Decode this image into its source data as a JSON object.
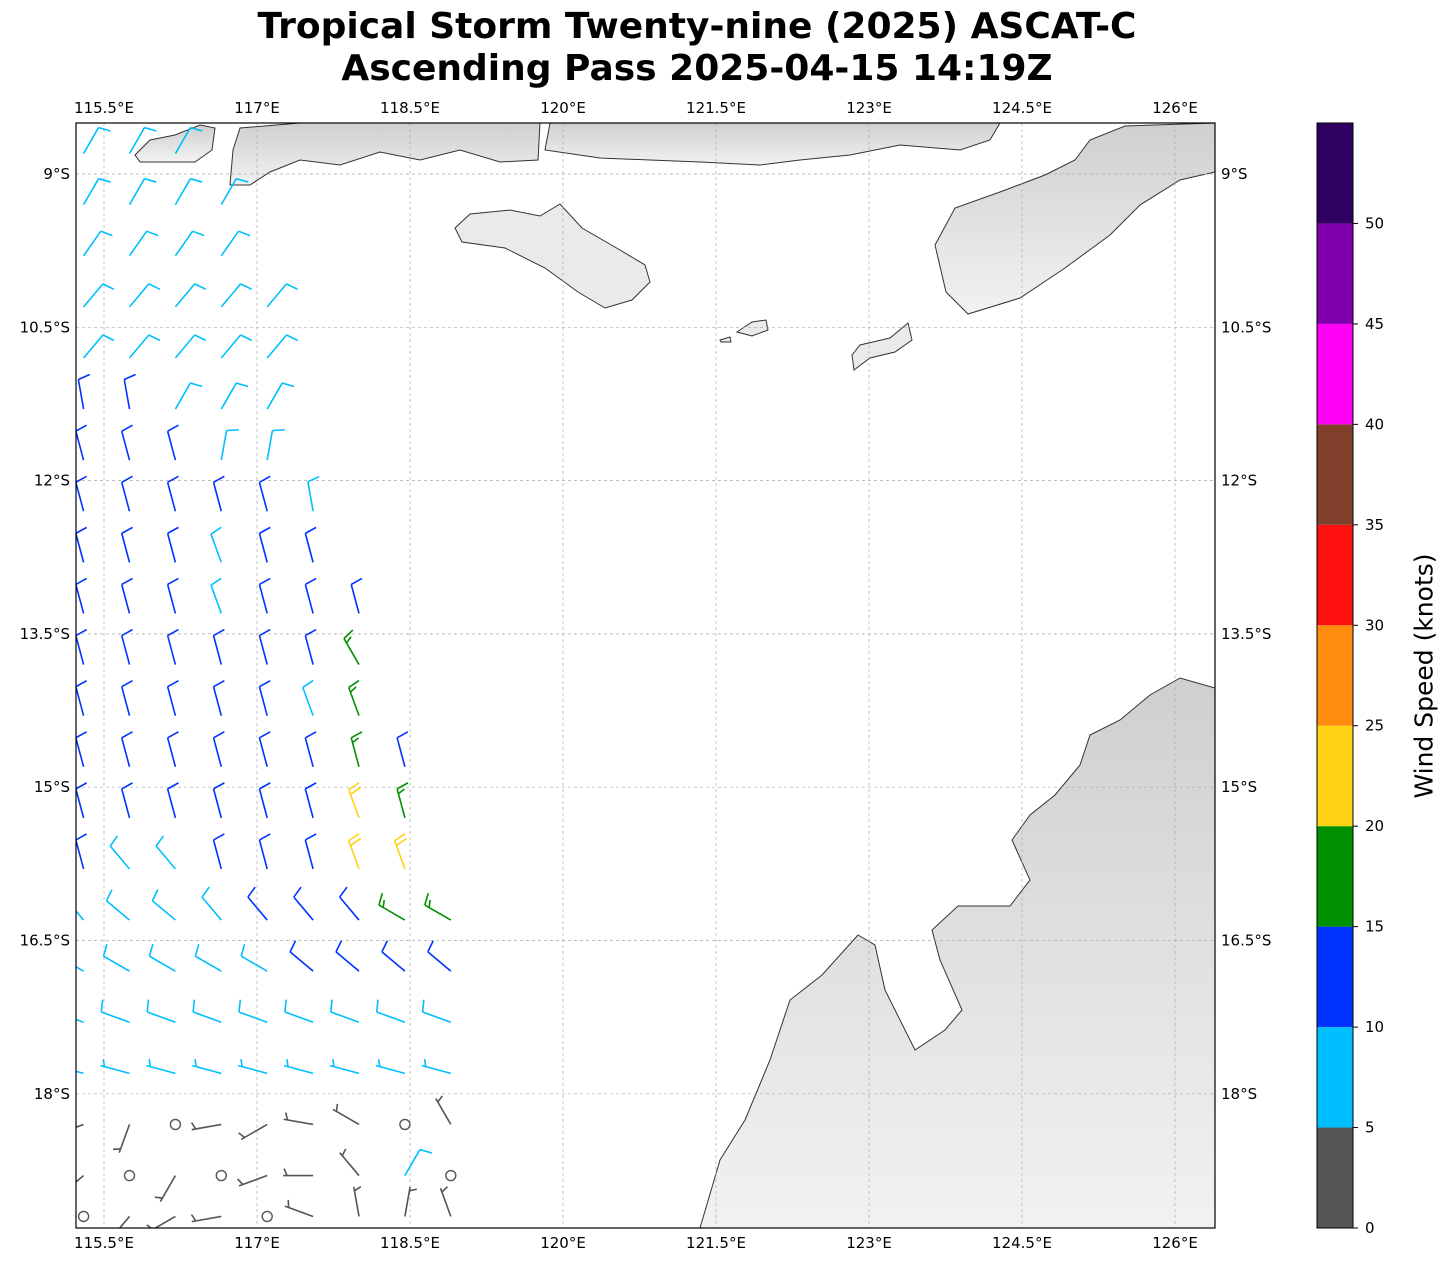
{
  "title": {
    "line1": "Tropical Storm Twenty-nine (2025) ASCAT-C",
    "line2": "Ascending Pass 2025-04-15 14:19Z"
  },
  "map": {
    "lon_ticks": [
      "115.5°E",
      "117°E",
      "118.5°E",
      "120°E",
      "121.5°E",
      "123°E",
      "124.5°E",
      "126°E"
    ],
    "lon_values": [
      115.5,
      117,
      118.5,
      120,
      121.5,
      123,
      124.5,
      126
    ],
    "lat_ticks": [
      "9°S",
      "10.5°S",
      "12°S",
      "13.5°S",
      "15°S",
      "16.5°S",
      "18°S"
    ],
    "lat_values": [
      9,
      10.5,
      12,
      13.5,
      15,
      16.5,
      18
    ],
    "extent": {
      "lon": [
        115.22,
        126.38
      ],
      "lat_south": [
        8.5,
        19.3
      ]
    },
    "gridlines": true,
    "land_color": "#e6e6e6",
    "coast_color": "#333333"
  },
  "colorbar": {
    "label": "Wind Speed (knots)",
    "range": [
      0,
      55
    ],
    "tick_labels": [
      "0",
      "5",
      "10",
      "15",
      "20",
      "25",
      "30",
      "35",
      "40",
      "45",
      "50"
    ],
    "bins": [
      {
        "min": 0,
        "max": 5,
        "color": "#555555"
      },
      {
        "min": 5,
        "max": 10,
        "color": "#00BFFF"
      },
      {
        "min": 10,
        "max": 15,
        "color": "#0033FF"
      },
      {
        "min": 15,
        "max": 20,
        "color": "#009000"
      },
      {
        "min": 20,
        "max": 25,
        "color": "#FFD314"
      },
      {
        "min": 25,
        "max": 30,
        "color": "#FF8C0F"
      },
      {
        "min": 30,
        "max": 35,
        "color": "#FF1010"
      },
      {
        "min": 35,
        "max": 40,
        "color": "#803F2A"
      },
      {
        "min": 40,
        "max": 45,
        "color": "#FF00F5"
      },
      {
        "min": 45,
        "max": 50,
        "color": "#8000B0"
      },
      {
        "min": 50,
        "max": 55,
        "color": "#300060"
      }
    ]
  },
  "wind_barbs_fields": [
    "lon",
    "lat_south",
    "speed_kt",
    "direction_from_deg"
  ],
  "wind_barbs": [
    [
      115.3,
      8.8,
      8,
      30
    ],
    [
      115.75,
      8.8,
      8,
      30
    ],
    [
      116.2,
      8.8,
      8,
      30
    ],
    [
      115.3,
      9.3,
      8,
      30
    ],
    [
      115.75,
      9.3,
      8,
      30
    ],
    [
      116.2,
      9.3,
      8,
      30
    ],
    [
      116.65,
      9.3,
      8,
      30
    ],
    [
      115.3,
      9.8,
      8,
      35
    ],
    [
      115.75,
      9.8,
      8,
      35
    ],
    [
      116.2,
      9.8,
      8,
      35
    ],
    [
      116.65,
      9.8,
      8,
      35
    ],
    [
      115.3,
      10.3,
      8,
      40
    ],
    [
      115.75,
      10.3,
      8,
      40
    ],
    [
      116.2,
      10.3,
      8,
      40
    ],
    [
      116.65,
      10.3,
      8,
      40
    ],
    [
      117.1,
      10.3,
      8,
      40
    ],
    [
      115.3,
      10.8,
      8,
      40
    ],
    [
      115.75,
      10.8,
      8,
      40
    ],
    [
      116.2,
      10.8,
      8,
      40
    ],
    [
      116.65,
      10.8,
      8,
      40
    ],
    [
      117.1,
      10.8,
      8,
      40
    ],
    [
      115.3,
      11.3,
      11,
      350
    ],
    [
      115.75,
      11.3,
      11,
      350
    ],
    [
      116.2,
      11.3,
      8,
      30
    ],
    [
      116.65,
      11.3,
      8,
      30
    ],
    [
      117.1,
      11.3,
      8,
      30
    ],
    [
      115.3,
      11.8,
      11,
      345
    ],
    [
      115.75,
      11.8,
      11,
      345
    ],
    [
      116.2,
      11.8,
      11,
      345
    ],
    [
      116.65,
      11.8,
      8,
      10
    ],
    [
      117.1,
      11.8,
      8,
      10
    ],
    [
      115.3,
      12.3,
      12,
      345
    ],
    [
      115.75,
      12.3,
      12,
      345
    ],
    [
      116.2,
      12.3,
      12,
      345
    ],
    [
      116.65,
      12.3,
      12,
      345
    ],
    [
      117.1,
      12.3,
      12,
      345
    ],
    [
      117.55,
      12.3,
      8,
      350
    ],
    [
      115.3,
      12.8,
      12,
      345
    ],
    [
      115.75,
      12.8,
      12,
      345
    ],
    [
      116.2,
      12.8,
      12,
      345
    ],
    [
      116.65,
      12.8,
      8,
      340
    ],
    [
      117.1,
      12.8,
      12,
      345
    ],
    [
      117.55,
      12.8,
      12,
      345
    ],
    [
      115.3,
      13.3,
      12,
      345
    ],
    [
      115.75,
      13.3,
      12,
      345
    ],
    [
      116.2,
      13.3,
      12,
      345
    ],
    [
      116.65,
      13.3,
      8,
      340
    ],
    [
      117.1,
      13.3,
      12,
      345
    ],
    [
      117.55,
      13.3,
      12,
      345
    ],
    [
      118.0,
      13.3,
      12,
      345
    ],
    [
      115.3,
      13.8,
      12,
      345
    ],
    [
      115.75,
      13.8,
      12,
      345
    ],
    [
      116.2,
      13.8,
      12,
      345
    ],
    [
      116.65,
      13.8,
      12,
      345
    ],
    [
      117.1,
      13.8,
      12,
      345
    ],
    [
      117.55,
      13.8,
      12,
      345
    ],
    [
      118.0,
      13.8,
      17,
      330
    ],
    [
      115.3,
      14.3,
      12,
      345
    ],
    [
      115.75,
      14.3,
      12,
      345
    ],
    [
      116.2,
      14.3,
      12,
      345
    ],
    [
      116.65,
      14.3,
      12,
      345
    ],
    [
      117.1,
      14.3,
      12,
      345
    ],
    [
      117.55,
      14.3,
      8,
      340
    ],
    [
      118.0,
      14.3,
      17,
      340
    ],
    [
      115.3,
      14.8,
      12,
      345
    ],
    [
      115.75,
      14.8,
      12,
      345
    ],
    [
      116.2,
      14.8,
      12,
      345
    ],
    [
      116.65,
      14.8,
      12,
      345
    ],
    [
      117.1,
      14.8,
      12,
      345
    ],
    [
      117.55,
      14.8,
      12,
      345
    ],
    [
      118.0,
      14.8,
      17,
      345
    ],
    [
      118.45,
      14.8,
      12,
      345
    ],
    [
      115.3,
      15.3,
      12,
      345
    ],
    [
      115.75,
      15.3,
      12,
      345
    ],
    [
      116.2,
      15.3,
      12,
      345
    ],
    [
      116.65,
      15.3,
      12,
      345
    ],
    [
      117.1,
      15.3,
      12,
      345
    ],
    [
      117.55,
      15.3,
      12,
      345
    ],
    [
      118.0,
      15.3,
      22,
      340
    ],
    [
      118.45,
      15.3,
      17,
      345
    ],
    [
      115.3,
      15.8,
      12,
      345
    ],
    [
      115.75,
      15.8,
      8,
      320
    ],
    [
      116.2,
      15.8,
      8,
      320
    ],
    [
      116.65,
      15.8,
      12,
      345
    ],
    [
      117.1,
      15.8,
      12,
      345
    ],
    [
      117.55,
      15.8,
      12,
      345
    ],
    [
      118.0,
      15.8,
      22,
      340
    ],
    [
      118.45,
      15.8,
      22,
      340
    ],
    [
      115.3,
      16.3,
      8,
      320
    ],
    [
      115.75,
      16.3,
      8,
      310
    ],
    [
      116.2,
      16.3,
      8,
      310
    ],
    [
      116.65,
      16.3,
      8,
      320
    ],
    [
      117.1,
      16.3,
      12,
      320
    ],
    [
      117.55,
      16.3,
      12,
      320
    ],
    [
      118.0,
      16.3,
      12,
      320
    ],
    [
      118.45,
      16.3,
      17,
      300
    ],
    [
      118.9,
      16.3,
      17,
      300
    ],
    [
      115.3,
      16.8,
      8,
      300
    ],
    [
      115.75,
      16.8,
      8,
      300
    ],
    [
      116.2,
      16.8,
      8,
      300
    ],
    [
      116.65,
      16.8,
      8,
      300
    ],
    [
      117.1,
      16.8,
      8,
      300
    ],
    [
      117.55,
      16.8,
      12,
      310
    ],
    [
      118.0,
      16.8,
      12,
      310
    ],
    [
      118.45,
      16.8,
      12,
      310
    ],
    [
      118.9,
      16.8,
      12,
      310
    ],
    [
      115.3,
      17.3,
      8,
      290
    ],
    [
      115.75,
      17.3,
      8,
      290
    ],
    [
      116.2,
      17.3,
      8,
      290
    ],
    [
      116.65,
      17.3,
      8,
      290
    ],
    [
      117.1,
      17.3,
      8,
      290
    ],
    [
      117.55,
      17.3,
      8,
      290
    ],
    [
      118.0,
      17.3,
      8,
      290
    ],
    [
      118.45,
      17.3,
      8,
      290
    ],
    [
      118.9,
      17.3,
      8,
      290
    ],
    [
      115.3,
      17.8,
      7,
      285
    ],
    [
      115.75,
      17.8,
      7,
      285
    ],
    [
      116.2,
      17.8,
      7,
      285
    ],
    [
      116.65,
      17.8,
      7,
      285
    ],
    [
      117.1,
      17.8,
      7,
      285
    ],
    [
      117.55,
      17.8,
      7,
      285
    ],
    [
      118.0,
      17.8,
      7,
      285
    ],
    [
      118.45,
      17.8,
      7,
      285
    ],
    [
      118.9,
      17.8,
      7,
      285
    ],
    [
      115.3,
      18.3,
      3,
      250
    ],
    [
      115.75,
      18.3,
      3,
      200
    ],
    [
      116.2,
      18.3,
      0,
      0
    ],
    [
      116.65,
      18.3,
      3,
      260
    ],
    [
      117.1,
      18.3,
      3,
      240
    ],
    [
      117.55,
      18.3,
      3,
      280
    ],
    [
      118.0,
      18.3,
      3,
      300
    ],
    [
      118.45,
      18.3,
      0,
      0
    ],
    [
      118.9,
      18.3,
      3,
      330
    ],
    [
      115.3,
      18.8,
      3,
      230
    ],
    [
      115.75,
      18.8,
      0,
      0
    ],
    [
      116.2,
      18.8,
      3,
      210
    ],
    [
      116.65,
      18.8,
      0,
      0
    ],
    [
      117.1,
      18.8,
      3,
      250
    ],
    [
      117.55,
      18.8,
      3,
      270
    ],
    [
      118.0,
      18.8,
      3,
      320
    ],
    [
      118.45,
      18.8,
      8,
      30
    ],
    [
      118.9,
      18.8,
      0,
      0
    ],
    [
      115.3,
      19.2,
      0,
      0
    ],
    [
      115.75,
      19.2,
      3,
      220
    ],
    [
      116.2,
      19.2,
      3,
      240
    ],
    [
      116.65,
      19.2,
      3,
      260
    ],
    [
      117.1,
      19.2,
      0,
      0
    ],
    [
      117.55,
      19.2,
      3,
      290
    ],
    [
      118.0,
      19.2,
      3,
      350
    ],
    [
      118.45,
      19.2,
      3,
      10
    ],
    [
      118.9,
      19.2,
      3,
      340
    ]
  ]
}
